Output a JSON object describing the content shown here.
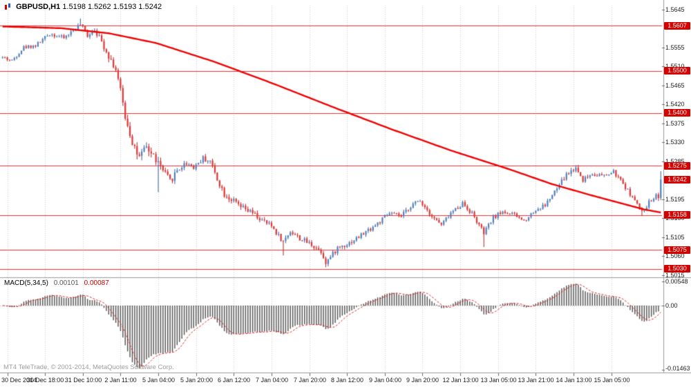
{
  "title": {
    "symbol_period": "GBPUSD,H1",
    "ohlc": "1.5198 1.5262 1.5193 1.5242"
  },
  "indicator": {
    "name": "MACD(5,34,5)",
    "value_main": "0.00101",
    "value_signal": "0.00087"
  },
  "copyright": "MT4 TeleTrade, © 2001-2014, MetaQuotes Software Corp.",
  "price_axis": {
    "ticks": [
      {
        "label": "1.5645",
        "value": 1.5645
      },
      {
        "label": "1.5555",
        "value": 1.5555
      },
      {
        "label": "1.5510",
        "value": 1.551
      },
      {
        "label": "1.5465",
        "value": 1.5465
      },
      {
        "label": "1.5420",
        "value": 1.542
      },
      {
        "label": "1.5375",
        "value": 1.5375
      },
      {
        "label": "1.5330",
        "value": 1.533
      },
      {
        "label": "1.5285",
        "value": 1.5285
      },
      {
        "label": "1.5195",
        "value": 1.5195
      },
      {
        "label": "1.5150",
        "value": 1.515
      },
      {
        "label": "1.5105",
        "value": 1.5105
      },
      {
        "label": "1.5060",
        "value": 1.506
      },
      {
        "label": "1.5015",
        "value": 1.5015
      }
    ],
    "badges": [
      {
        "label": "1.5607",
        "value": 1.5607,
        "current": false
      },
      {
        "label": "1.5500",
        "value": 1.55,
        "current": false
      },
      {
        "label": "1.5400",
        "value": 1.54,
        "current": false
      },
      {
        "label": "1.5275",
        "value": 1.5275,
        "current": false
      },
      {
        "label": "1.5242",
        "value": 1.5242,
        "current": true
      },
      {
        "label": "1.5158",
        "value": 1.5158,
        "current": false
      },
      {
        "label": "1.5075",
        "value": 1.5075,
        "current": false
      },
      {
        "label": "1.5030",
        "value": 1.503,
        "current": false
      }
    ]
  },
  "macd_axis": {
    "ticks": [
      {
        "label": "0.00548",
        "value": 0.00548
      },
      {
        "label": "0.00",
        "value": 0
      },
      {
        "label": "-0.01463",
        "value": -0.01463
      }
    ]
  },
  "time_axis": {
    "labels": [
      "30 Dec 2014",
      "30 Dec 18:00",
      "31 Dec 10:00",
      "2 Jan 11:00",
      "5 Jan 04:00",
      "5 Jan 20:00",
      "6 Jan 12:00",
      "7 Jan 04:00",
      "7 Jan 20:00",
      "8 Jan 12:00",
      "9 Jan 04:00",
      "9 Jan 20:00",
      "12 Jan 13:00",
      "13 Jan 05:00",
      "13 Jan 21:00",
      "14 Jan 13:00",
      "15 Jan 05:00"
    ]
  },
  "chart_data": {
    "type": "candlestick+macd",
    "symbol": "GBPUSD",
    "timeframe": "H1",
    "candle_count": 280,
    "time_grid": {
      "start": 2,
      "step": 16
    },
    "last_candle": {
      "open": 1.5198,
      "high": 1.5262,
      "low": 1.5193,
      "close": 1.5242
    },
    "levels": [
      1.5607,
      1.55,
      1.54,
      1.5275,
      1.5158,
      1.5075,
      1.503
    ],
    "price_range_shown": [
      1.5015,
      1.5645
    ],
    "price_path": [
      [
        0,
        1.5532
      ],
      [
        4,
        1.5524
      ],
      [
        9,
        1.5556
      ],
      [
        14,
        1.556
      ],
      [
        20,
        1.5588
      ],
      [
        26,
        1.5578
      ],
      [
        30,
        1.5596
      ],
      [
        33,
        1.561
      ],
      [
        36,
        1.5584
      ],
      [
        39,
        1.56
      ],
      [
        43,
        1.5558
      ],
      [
        48,
        1.5504
      ],
      [
        52,
        1.5394
      ],
      [
        55,
        1.5334
      ],
      [
        58,
        1.529
      ],
      [
        61,
        1.5318
      ],
      [
        65,
        1.529
      ],
      [
        68,
        1.5262
      ],
      [
        71,
        1.5238
      ],
      [
        74,
        1.5264
      ],
      [
        78,
        1.5282
      ],
      [
        81,
        1.5272
      ],
      [
        85,
        1.5292
      ],
      [
        88,
        1.5286
      ],
      [
        91,
        1.5244
      ],
      [
        94,
        1.5208
      ],
      [
        98,
        1.519
      ],
      [
        101,
        1.5176
      ],
      [
        106,
        1.5162
      ],
      [
        110,
        1.5144
      ],
      [
        114,
        1.5132
      ],
      [
        119,
        1.5094
      ],
      [
        122,
        1.512
      ],
      [
        126,
        1.5102
      ],
      [
        131,
        1.5088
      ],
      [
        135,
        1.5072
      ],
      [
        137,
        1.5046
      ],
      [
        139,
        1.5058
      ],
      [
        142,
        1.508
      ],
      [
        147,
        1.5092
      ],
      [
        151,
        1.5106
      ],
      [
        155,
        1.5122
      ],
      [
        160,
        1.5142
      ],
      [
        164,
        1.5162
      ],
      [
        169,
        1.5154
      ],
      [
        173,
        1.518
      ],
      [
        177,
        1.5192
      ],
      [
        182,
        1.5156
      ],
      [
        186,
        1.5134
      ],
      [
        190,
        1.5162
      ],
      [
        195,
        1.5186
      ],
      [
        199,
        1.5162
      ],
      [
        204,
        1.5114
      ],
      [
        208,
        1.5152
      ],
      [
        212,
        1.5166
      ],
      [
        217,
        1.5158
      ],
      [
        221,
        1.5144
      ],
      [
        225,
        1.5166
      ],
      [
        230,
        1.5182
      ],
      [
        234,
        1.5212
      ],
      [
        239,
        1.5254
      ],
      [
        243,
        1.527
      ],
      [
        246,
        1.5242
      ],
      [
        250,
        1.5256
      ],
      [
        255,
        1.525
      ],
      [
        259,
        1.526
      ],
      [
        263,
        1.5232
      ],
      [
        267,
        1.52
      ],
      [
        271,
        1.5164
      ],
      [
        274,
        1.5188
      ],
      [
        277,
        1.5206
      ],
      [
        278,
        1.5198
      ],
      [
        279,
        1.5242
      ]
    ],
    "ma_path": [
      [
        0,
        1.5605
      ],
      [
        25,
        1.5601
      ],
      [
        45,
        1.5589
      ],
      [
        65,
        1.5566
      ],
      [
        90,
        1.5521
      ],
      [
        115,
        1.5469
      ],
      [
        140,
        1.5414
      ],
      [
        165,
        1.5361
      ],
      [
        190,
        1.5311
      ],
      [
        215,
        1.5266
      ],
      [
        233,
        1.5231
      ],
      [
        250,
        1.5204
      ],
      [
        262,
        1.5186
      ],
      [
        272,
        1.5171
      ],
      [
        279,
        1.5164
      ]
    ],
    "volatility_path": [
      [
        0,
        0.0007
      ],
      [
        35,
        0.0009
      ],
      [
        46,
        0.0016
      ],
      [
        52,
        0.0026
      ],
      [
        60,
        0.0022
      ],
      [
        70,
        0.0016
      ],
      [
        80,
        0.0012
      ],
      [
        95,
        0.0013
      ],
      [
        120,
        0.0011
      ],
      [
        140,
        0.0011
      ],
      [
        160,
        0.001
      ],
      [
        180,
        0.0009
      ],
      [
        200,
        0.001
      ],
      [
        215,
        0.0008
      ],
      [
        232,
        0.0009
      ],
      [
        240,
        0.0013
      ],
      [
        250,
        0.0009
      ],
      [
        262,
        0.0008
      ],
      [
        270,
        0.0009
      ],
      [
        279,
        0.0008
      ]
    ],
    "forced_highs": [
      [
        33,
        1.5624
      ],
      [
        243,
        1.5276
      ],
      [
        259,
        1.5266
      ]
    ],
    "forced_lows": [
      [
        66,
        1.5212
      ],
      [
        119,
        1.5062
      ],
      [
        137,
        1.5034
      ],
      [
        204,
        1.5082
      ],
      [
        271,
        1.5156
      ]
    ],
    "macd": {
      "fast": 5,
      "slow": 34,
      "signal": 5,
      "display_max": 0.00548,
      "display_min": -0.01463
    },
    "colors": {
      "bull": "#4f81bd",
      "bull_wick": "#2e5d92",
      "bear": "#e23434",
      "bear_wick": "#b31b1b",
      "ma": "#f00000",
      "level_line": "#e83030",
      "badge": "#d40000",
      "grid": "#c9c9c9",
      "divider": "#9a9a9a",
      "macd_bar": "#4d4d4d",
      "macd_signal": "#dd2222"
    }
  }
}
